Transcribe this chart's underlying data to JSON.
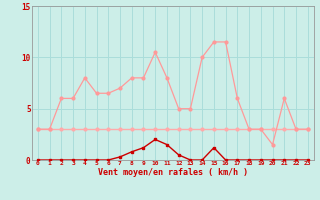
{
  "x": [
    0,
    1,
    2,
    3,
    4,
    5,
    6,
    7,
    8,
    9,
    10,
    11,
    12,
    13,
    14,
    15,
    16,
    17,
    18,
    19,
    20,
    21,
    22,
    23
  ],
  "vent_moyen": [
    0,
    0,
    0,
    0,
    0,
    0,
    0,
    0.3,
    0.8,
    1.2,
    2.0,
    1.5,
    0.5,
    0,
    0,
    1.2,
    0,
    0,
    0,
    0,
    0,
    0,
    0,
    0
  ],
  "vent_rafales": [
    3,
    3,
    6,
    6,
    8,
    6.5,
    6.5,
    7,
    8,
    8,
    10.5,
    8,
    5,
    5,
    10,
    11.5,
    11.5,
    6,
    3,
    3,
    1.5,
    6,
    3,
    3
  ],
  "vent_flat": [
    3,
    3,
    3,
    3,
    3,
    3,
    3,
    3,
    3,
    3,
    3,
    3,
    3,
    3,
    3,
    3,
    3,
    3,
    3,
    3,
    3,
    3,
    3,
    3
  ],
  "bg_color": "#cceee8",
  "grid_color": "#aaddda",
  "line_color_rafales": "#ff9999",
  "line_color_moyen": "#cc0000",
  "line_color_flat": "#ffaaaa",
  "xlabel": "Vent moyen/en rafales ( km/h )",
  "ylim": [
    0,
    15
  ],
  "yticks": [
    0,
    5,
    10,
    15
  ],
  "xticks": [
    0,
    1,
    2,
    3,
    4,
    5,
    6,
    7,
    8,
    9,
    10,
    11,
    12,
    13,
    14,
    15,
    16,
    17,
    18,
    19,
    20,
    21,
    22,
    23
  ]
}
